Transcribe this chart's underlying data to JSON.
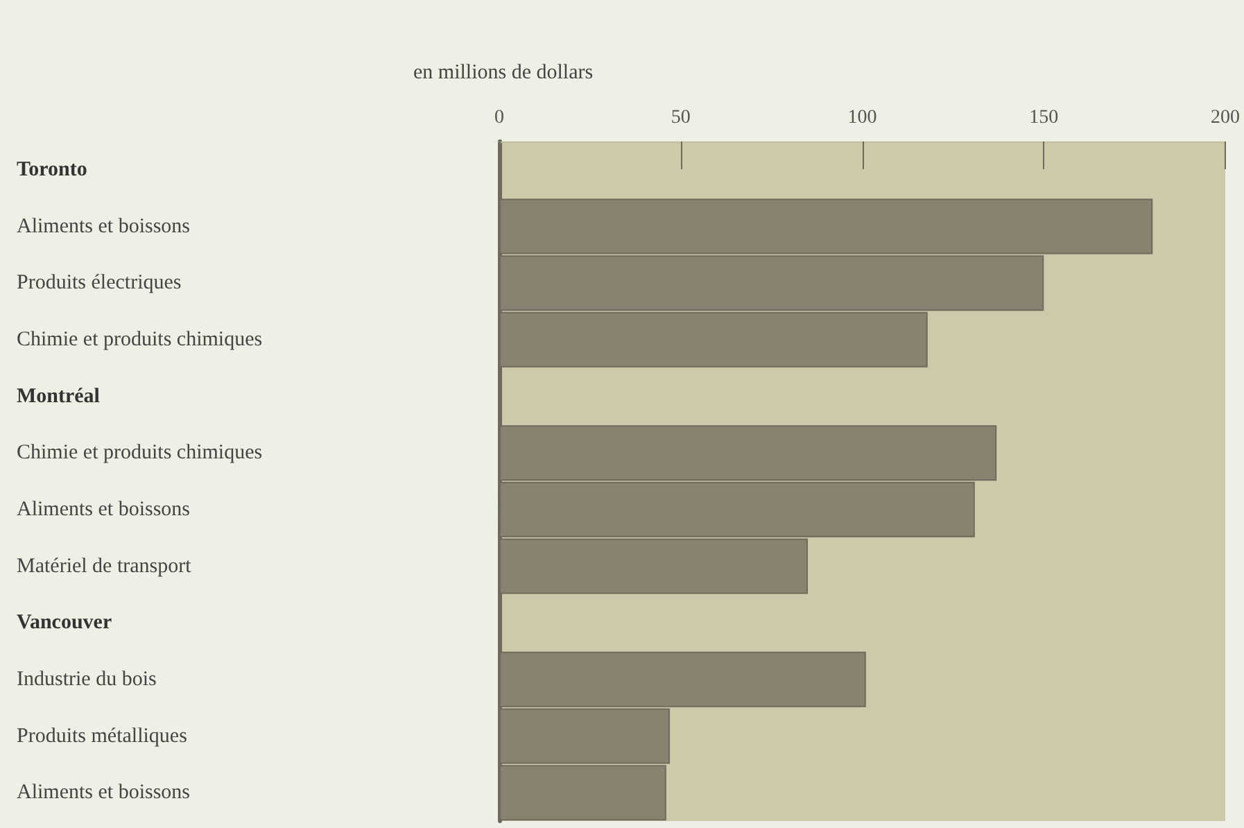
{
  "chart_data": {
    "type": "bar",
    "orientation": "horizontal",
    "x2label": "en millions de dollars",
    "categories": [
      "Toronto",
      "Aliments et boissons",
      "Produits électriques",
      "Chimie et produits chimiques",
      "Montréal",
      "Chimie et produits chimiques",
      "Aliments et boissons",
      "Matériel de transport",
      "Vancouver",
      "Industrie du bois",
      "Produits métalliques",
      "Aliments et boissons"
    ],
    "series": [
      {
        "axis": "x2",
        "color": "#8a8270",
        "values": [
          null,
          180,
          150,
          118,
          null,
          137,
          131,
          85,
          null,
          101,
          47,
          46
        ]
      }
    ],
    "x2lim": [
      0,
      200
    ],
    "x2ticks": [
      0,
      50,
      100,
      150,
      200
    ],
    "grid": false
  }
}
